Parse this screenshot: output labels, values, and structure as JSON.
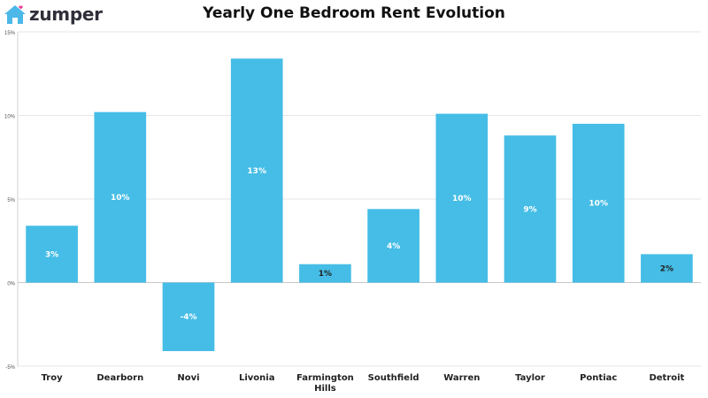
{
  "brand": {
    "name": "zumper",
    "icon": "house-logo-icon",
    "logo_color": "#4bb8e8",
    "accent_dot_color": "#e83e8c"
  },
  "chart_data": {
    "type": "bar",
    "title": "Yearly One Bedroom Rent Evolution",
    "xlabel": "",
    "ylabel": "",
    "categories": [
      "Troy",
      "Dearborn",
      "Novi",
      "Livonia",
      "Farmington Hills",
      "Southfield",
      "Warren",
      "Taylor",
      "Pontiac",
      "Detroit"
    ],
    "values": [
      3.4,
      10.2,
      -4.1,
      13.4,
      1.1,
      4.4,
      10.1,
      8.8,
      9.5,
      1.7
    ],
    "data_labels": [
      "3%",
      "10%",
      "-4%",
      "13%",
      "1%",
      "4%",
      "10%",
      "9%",
      "10%",
      "2%"
    ],
    "ylim": [
      -5,
      15
    ],
    "yticks": [
      15,
      10,
      5,
      0,
      -5
    ],
    "ytick_labels": [
      "15%",
      "10%",
      "5%",
      "0%",
      "-5%"
    ],
    "grid": true,
    "bar_color": "#45bde6",
    "data_label_color": "#ffffff",
    "small_bar_label_color": "#222222"
  }
}
